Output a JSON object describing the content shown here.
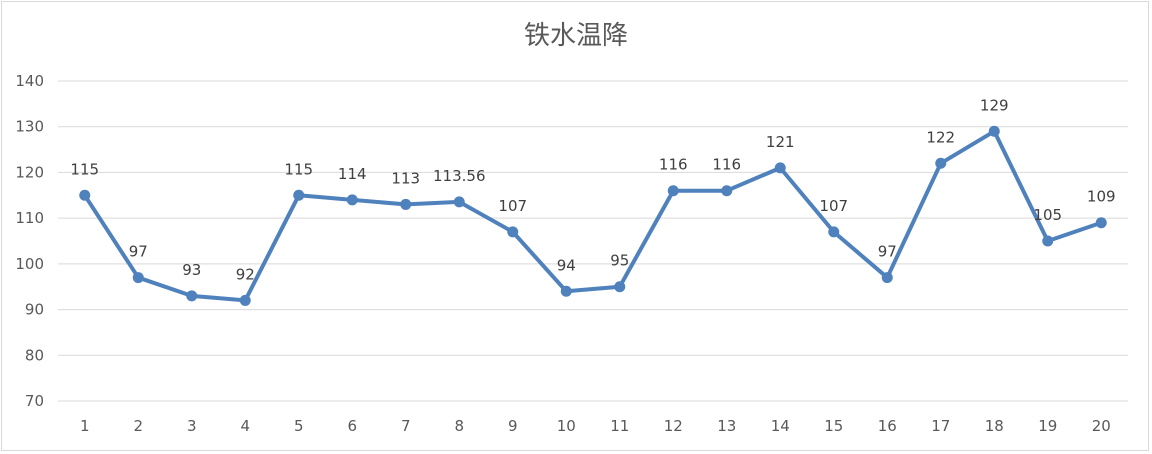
{
  "chart_data": {
    "type": "line",
    "title": "铁水温降",
    "xlabel": "",
    "ylabel": "",
    "categories": [
      "1",
      "2",
      "3",
      "4",
      "5",
      "6",
      "7",
      "8",
      "9",
      "10",
      "11",
      "12",
      "13",
      "14",
      "15",
      "16",
      "17",
      "18",
      "19",
      "20"
    ],
    "series": [
      {
        "values": [
          115,
          97,
          93,
          92,
          115,
          114,
          113,
          113.56,
          107,
          94,
          95,
          116,
          116,
          121,
          107,
          97,
          122,
          129,
          105,
          109
        ],
        "data_labels": [
          "115",
          "97",
          "93",
          "92",
          "115",
          "114",
          "113",
          "113.56",
          "107",
          "94",
          "95",
          "116",
          "116",
          "121",
          "107",
          "97",
          "122",
          "129",
          "105",
          "109"
        ],
        "color": "#4f81bd"
      }
    ],
    "ylim": [
      70,
      140
    ],
    "yticks": [
      70,
      80,
      90,
      100,
      110,
      120,
      130,
      140
    ],
    "grid": true,
    "legend": "none",
    "gridline_color": "#d9d9d9",
    "text_color": "#595959"
  }
}
